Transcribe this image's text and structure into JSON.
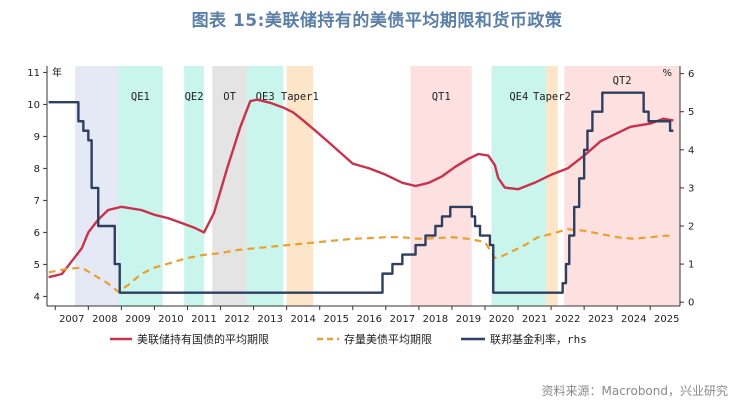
{
  "title": "图表 15:美联储持有的美债平均期限和货币政策",
  "source": "资料来源：Macrobond，兴业研究",
  "chart_data": {
    "type": "line",
    "xlabel": "",
    "ylabel": "",
    "left_axis": {
      "unit_label": "年",
      "ylim": [
        3.7,
        11.2
      ],
      "ticks": [
        4,
        5,
        6,
        7,
        8,
        9,
        10,
        11
      ]
    },
    "right_axis": {
      "unit_label": "%",
      "ylim": [
        -0.1,
        6.2
      ],
      "ticks": [
        0,
        1,
        2,
        3,
        4,
        5,
        6
      ]
    },
    "xlim": [
      2006.75,
      2025.9
    ],
    "x_ticks": [
      "2007",
      "2008",
      "2009",
      "2010",
      "2011",
      "2012",
      "2013",
      "2014",
      "2015",
      "2016",
      "2017",
      "2018",
      "2019",
      "2020",
      "2021",
      "2022",
      "2023",
      "2024",
      "2025"
    ],
    "legend_position": "bottom",
    "policy_periods": [
      {
        "label": "",
        "start": 2007.6,
        "end": 2008.9,
        "color": "#e4e9f5"
      },
      {
        "label": "QE1",
        "start": 2008.9,
        "end": 2010.25,
        "color": "#c9f5ec"
      },
      {
        "label": "QE2",
        "start": 2010.9,
        "end": 2011.5,
        "color": "#c9f5ec"
      },
      {
        "label": "OT",
        "start": 2011.75,
        "end": 2012.8,
        "color": "#e4e4e4"
      },
      {
        "label": "QE3",
        "start": 2012.8,
        "end": 2013.9,
        "color": "#c9f5ec"
      },
      {
        "label": "Taper1",
        "start": 2014.0,
        "end": 2014.8,
        "color": "#fce5c8"
      },
      {
        "label": "QT1",
        "start": 2017.75,
        "end": 2019.6,
        "color": "#fde0e0"
      },
      {
        "label": "QE4",
        "start": 2020.2,
        "end": 2021.85,
        "color": "#c9f5ec"
      },
      {
        "label": "Taper2",
        "start": 2021.85,
        "end": 2022.2,
        "color": "#fce5c8"
      },
      {
        "label": "QT2",
        "start": 2022.4,
        "end": 2025.9,
        "color": "#fde0e0"
      }
    ],
    "series": [
      {
        "name": "美联储持有国债的平均期限",
        "axis": "left",
        "color": "#c8324c",
        "style": "solid",
        "x": [
          2006.8,
          2007.2,
          2007.5,
          2007.8,
          2008.0,
          2008.3,
          2008.6,
          2008.8,
          2009.0,
          2009.3,
          2009.6,
          2010.0,
          2010.4,
          2010.8,
          2011.2,
          2011.5,
          2011.8,
          2012.2,
          2012.6,
          2012.9,
          2013.1,
          2013.5,
          2013.9,
          2014.2,
          2014.5,
          2014.9,
          2015.4,
          2016.0,
          2016.5,
          2017.0,
          2017.5,
          2017.9,
          2018.3,
          2018.7,
          2019.1,
          2019.5,
          2019.8,
          2020.1,
          2020.3,
          2020.4,
          2020.6,
          2021.0,
          2021.5,
          2022.0,
          2022.5,
          2023.0,
          2023.5,
          2024.0,
          2024.4,
          2024.7,
          2025.0,
          2025.4,
          2025.7
        ],
        "values": [
          4.6,
          4.7,
          5.1,
          5.5,
          6.0,
          6.4,
          6.7,
          6.75,
          6.8,
          6.75,
          6.7,
          6.55,
          6.45,
          6.3,
          6.15,
          6.0,
          6.6,
          8.0,
          9.3,
          10.1,
          10.15,
          10.05,
          9.9,
          9.75,
          9.5,
          9.15,
          8.7,
          8.15,
          8.0,
          7.8,
          7.55,
          7.45,
          7.55,
          7.75,
          8.05,
          8.3,
          8.45,
          8.4,
          8.1,
          7.7,
          7.4,
          7.35,
          7.55,
          7.8,
          8.0,
          8.4,
          8.85,
          9.1,
          9.3,
          9.35,
          9.4,
          9.55,
          9.5
        ]
      },
      {
        "name": "存量美债平均期限",
        "axis": "left",
        "color": "#eaa030",
        "style": "dashed",
        "x": [
          2006.8,
          2007.3,
          2007.8,
          2008.2,
          2008.6,
          2008.9,
          2009.2,
          2009.6,
          2010.0,
          2010.5,
          2011.0,
          2011.5,
          2012.0,
          2012.5,
          2013.0,
          2013.5,
          2014.0,
          2014.5,
          2015.0,
          2015.5,
          2016.0,
          2016.5,
          2017.0,
          2017.5,
          2018.0,
          2018.5,
          2019.0,
          2019.5,
          2020.0,
          2020.3,
          2020.5,
          2020.8,
          2021.2,
          2021.6,
          2022.0,
          2022.5,
          2023.0,
          2023.5,
          2024.0,
          2024.5,
          2025.0,
          2025.5,
          2025.7
        ],
        "values": [
          4.75,
          4.85,
          4.9,
          4.65,
          4.4,
          4.15,
          4.35,
          4.7,
          4.9,
          5.05,
          5.2,
          5.3,
          5.35,
          5.45,
          5.5,
          5.55,
          5.6,
          5.65,
          5.7,
          5.75,
          5.8,
          5.82,
          5.85,
          5.85,
          5.8,
          5.82,
          5.85,
          5.8,
          5.7,
          5.2,
          5.25,
          5.4,
          5.6,
          5.85,
          5.95,
          6.1,
          6.05,
          5.95,
          5.85,
          5.8,
          5.85,
          5.9,
          5.85
        ]
      },
      {
        "name": "联邦基金利率，rhs",
        "axis": "right",
        "color": "#2f3f5f",
        "style": "step",
        "x": [
          2006.8,
          2007.55,
          2007.7,
          2007.85,
          2008.0,
          2008.1,
          2008.3,
          2008.8,
          2008.95,
          2015.9,
          2016.9,
          2017.2,
          2017.5,
          2017.9,
          2018.2,
          2018.5,
          2018.7,
          2018.95,
          2019.6,
          2019.7,
          2019.85,
          2020.15,
          2020.25,
          2022.2,
          2022.35,
          2022.45,
          2022.55,
          2022.7,
          2022.85,
          2023.0,
          2023.1,
          2023.25,
          2023.55,
          2024.7,
          2024.8,
          2024.95,
          2025.6
        ],
        "values": [
          5.25,
          5.25,
          4.75,
          4.5,
          4.25,
          3.0,
          2.0,
          1.0,
          0.25,
          0.25,
          0.75,
          1.0,
          1.25,
          1.5,
          1.75,
          2.0,
          2.25,
          2.5,
          2.25,
          2.0,
          1.75,
          1.5,
          0.25,
          0.25,
          0.5,
          1.0,
          1.75,
          2.5,
          3.25,
          4.0,
          4.5,
          5.0,
          5.5,
          5.5,
          5.0,
          4.75,
          4.5
        ]
      }
    ]
  }
}
